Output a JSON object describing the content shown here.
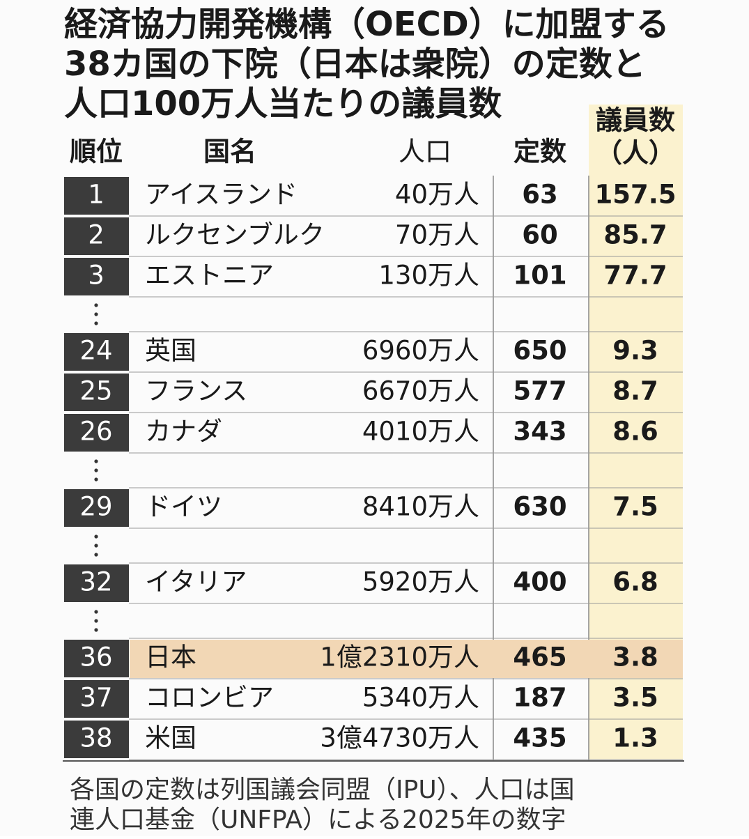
{
  "title": [
    "経済協力開発機構（OECD）に加盟する",
    "38カ国の下院（日本は衆院）の定数と",
    "人口100万人当たりの議員数"
  ],
  "header": {
    "rank": "順位",
    "country": "国名",
    "population": "人口",
    "seats": "定数",
    "per_million": [
      "議員数",
      "（人）"
    ]
  },
  "groups": [
    [
      {
        "rank": 1,
        "country": "アイスランド",
        "population": "40万人",
        "seats": 63,
        "per_million": 157.5
      },
      {
        "rank": 2,
        "country": "ルクセンブルク",
        "population": "70万人",
        "seats": 60,
        "per_million": 85.7
      },
      {
        "rank": 3,
        "country": "エストニア",
        "population": "130万人",
        "seats": 101,
        "per_million": 77.7
      }
    ],
    [
      {
        "rank": 24,
        "country": "英国",
        "population": "6960万人",
        "seats": 650,
        "per_million": 9.3
      },
      {
        "rank": 25,
        "country": "フランス",
        "population": "6670万人",
        "seats": 577,
        "per_million": 8.7
      },
      {
        "rank": 26,
        "country": "カナダ",
        "population": "4010万人",
        "seats": 343,
        "per_million": 8.6
      }
    ],
    [
      {
        "rank": 29,
        "country": "ドイツ",
        "population": "8410万人",
        "seats": 630,
        "per_million": 7.5
      }
    ],
    [
      {
        "rank": 32,
        "country": "イタリア",
        "population": "5920万人",
        "seats": 400,
        "per_million": 6.8
      }
    ],
    [
      {
        "rank": 36,
        "country": "日本",
        "population": "1億2310万人",
        "seats": 465,
        "per_million": 3.8
      },
      {
        "rank": 37,
        "country": "コロンビア",
        "population": "5340万人",
        "seats": 187,
        "per_million": 3.5
      },
      {
        "rank": 38,
        "country": "米国",
        "population": "3億4730万人",
        "seats": 435,
        "per_million": 1.3
      }
    ]
  ],
  "highlight_country": "日本",
  "footnote": [
    "各国の定数は列国議会同盟（IPU）、人口は国",
    "連人口基金（UNFPA）による2025年の数字"
  ]
}
